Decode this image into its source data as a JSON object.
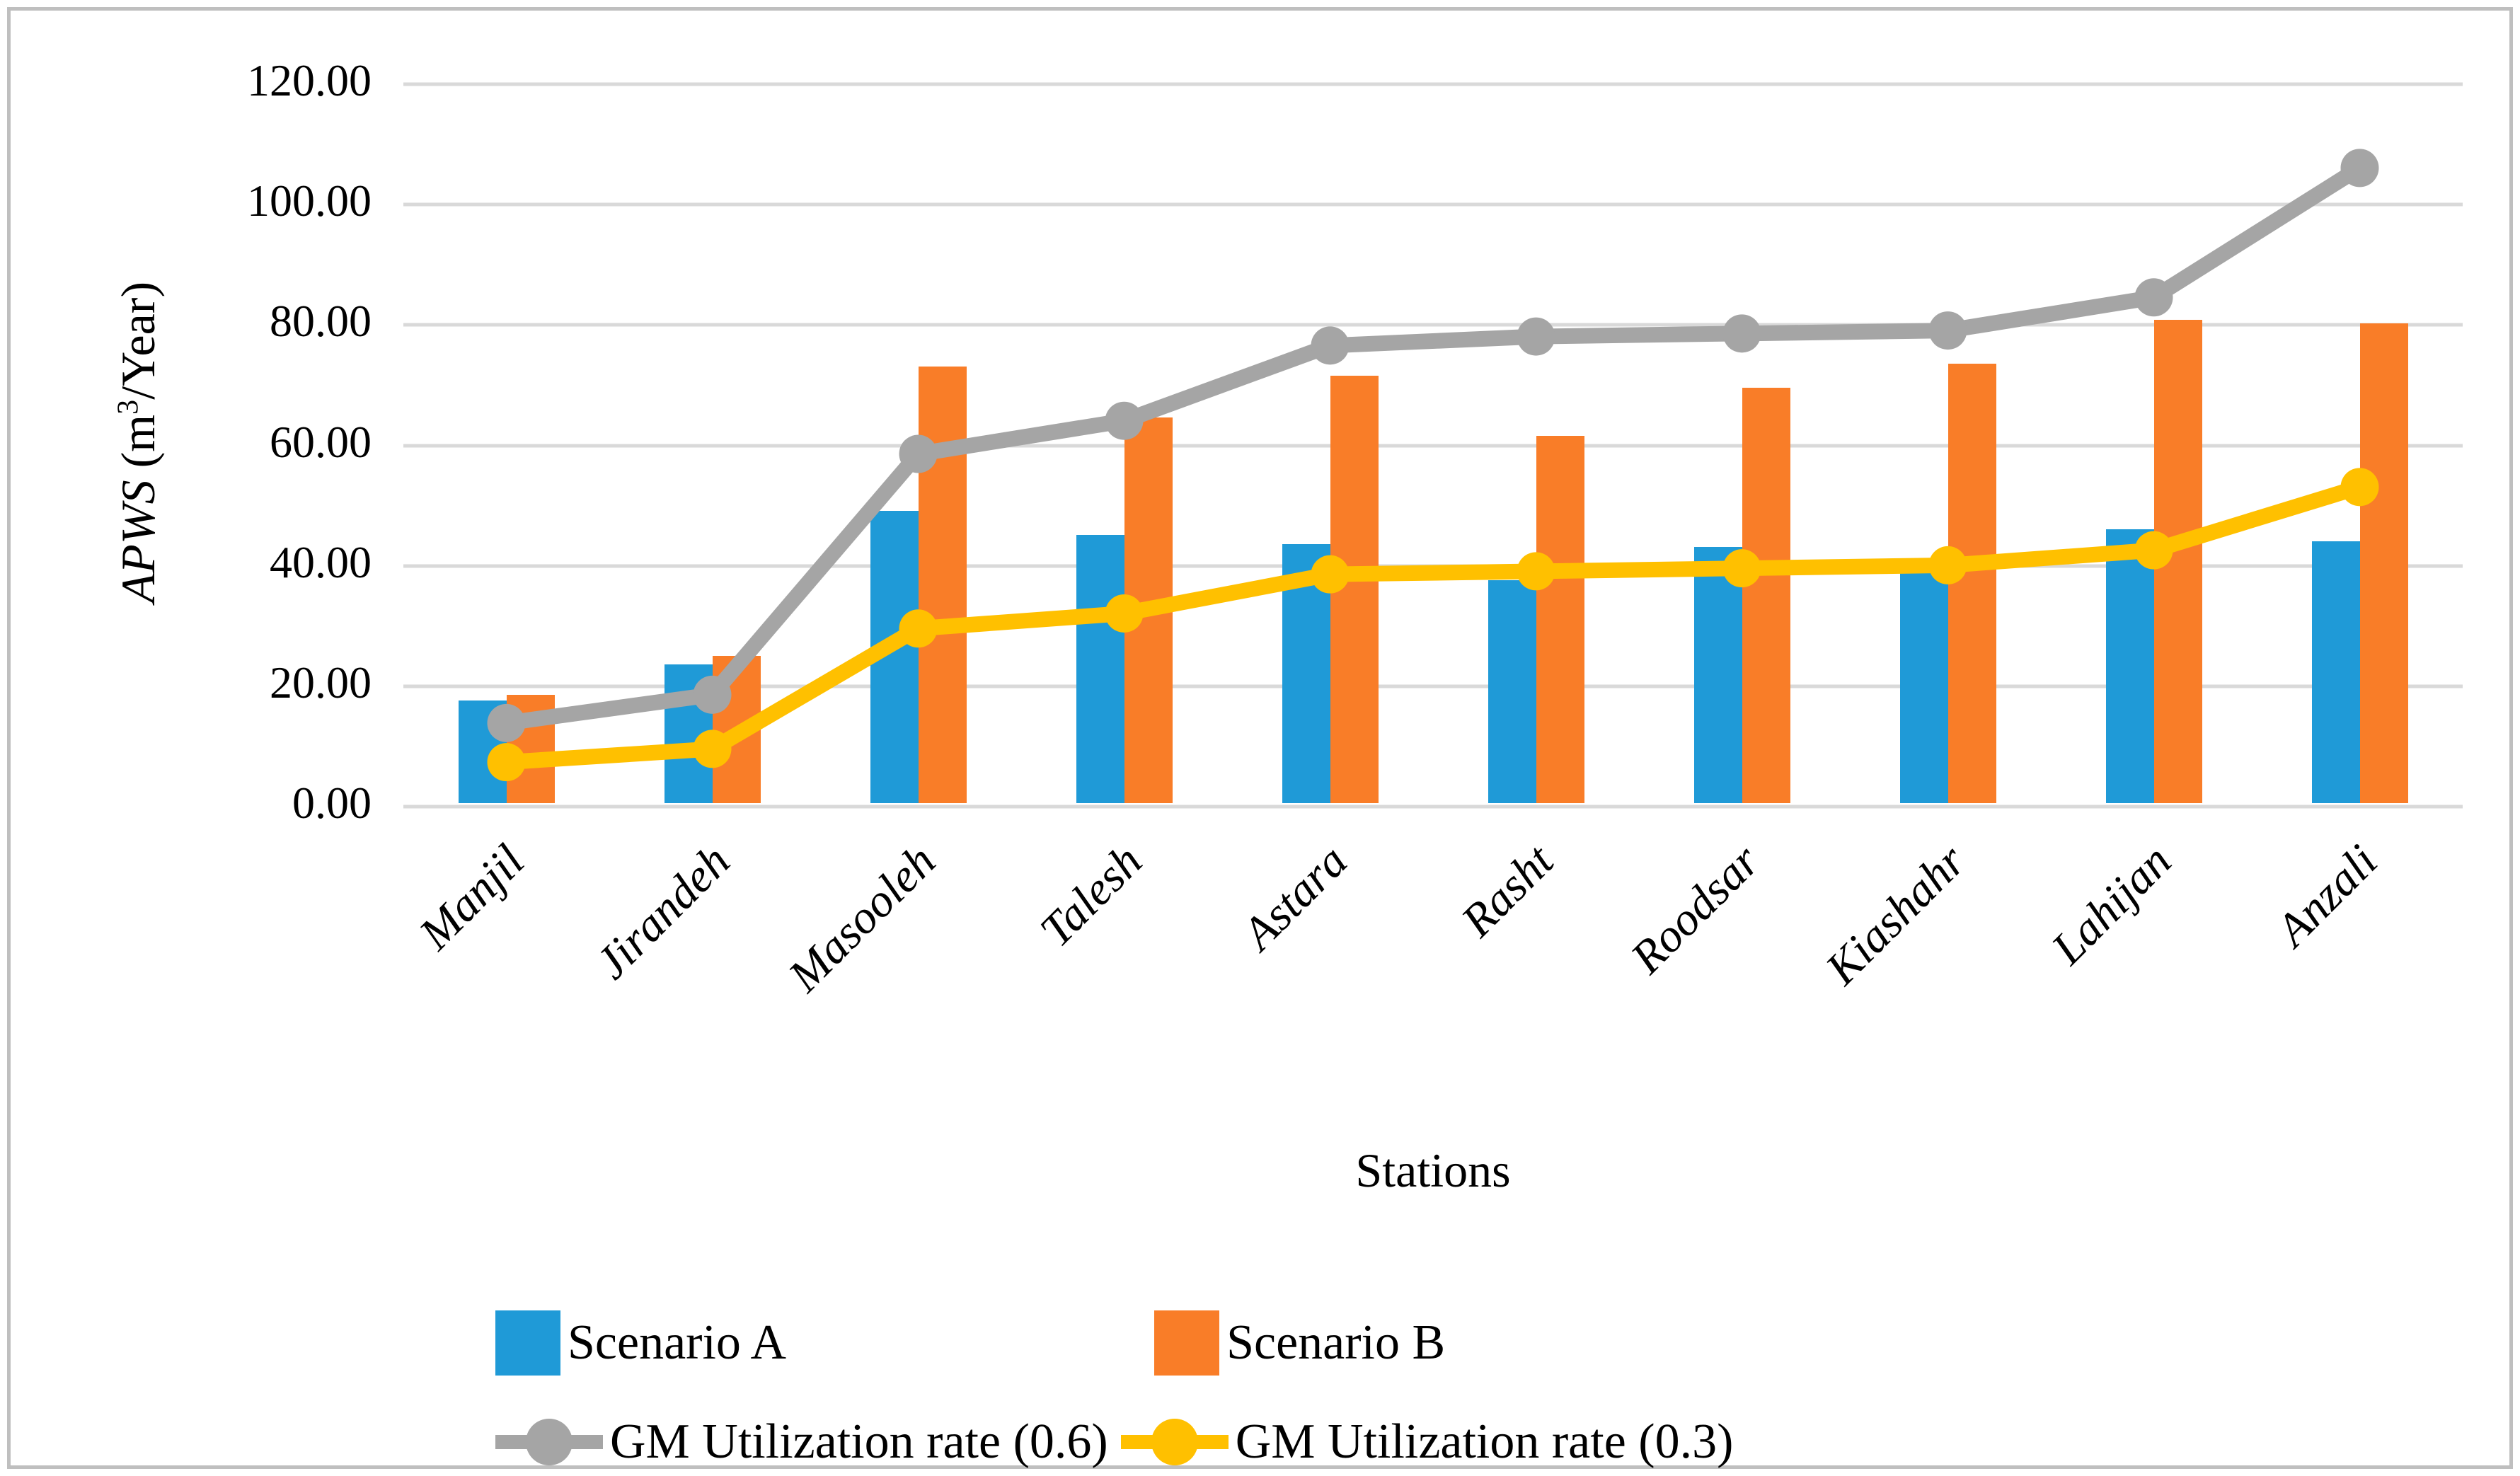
{
  "chart_data": {
    "type": "combo",
    "categories": [
      "Manjil",
      "Jirandeh",
      "Masooleh",
      "Talesh",
      "Astara",
      "Rasht",
      "Roodsar",
      "Kiashahr",
      "Lahijan",
      "Anzali"
    ],
    "series": [
      {
        "name": "Scenario A",
        "type": "bar",
        "color": "#1f9ad7",
        "values": [
          17.0,
          23.0,
          48.5,
          44.5,
          43.0,
          37.0,
          42.5,
          38.5,
          45.5,
          43.5
        ]
      },
      {
        "name": "Scenario B",
        "type": "bar",
        "color": "#f97d28",
        "values": [
          18.0,
          24.5,
          72.5,
          64.0,
          71.0,
          61.0,
          69.0,
          73.0,
          80.3,
          79.7
        ]
      },
      {
        "name": "GM Utilization rate (0.6)",
        "type": "line",
        "color": "#a5a5a5",
        "values": [
          13.3,
          18.0,
          58.0,
          63.5,
          76.0,
          77.5,
          78.0,
          78.5,
          84.0,
          105.5
        ]
      },
      {
        "name": "GM Utilization rate (0.3)",
        "type": "line",
        "color": "#ffc000",
        "values": [
          6.8,
          9.0,
          29.0,
          31.5,
          38.0,
          38.5,
          39.0,
          39.5,
          42.0,
          52.5
        ]
      }
    ],
    "title": "",
    "xlabel": "Stations",
    "ylabel": "APWS (m3/Year)",
    "ylim": [
      0,
      120
    ],
    "grid": true,
    "legend_position": "bottom",
    "yticks": [
      {
        "value": 0,
        "label": "0.00"
      },
      {
        "value": 20,
        "label": "20.00"
      },
      {
        "value": 40,
        "label": "40.00"
      },
      {
        "value": 60,
        "label": "60.00"
      },
      {
        "value": 80,
        "label": "80.00"
      },
      {
        "value": 100,
        "label": "100.00"
      },
      {
        "value": 120,
        "label": "120.00"
      }
    ]
  },
  "y_title": {
    "italic": "APWS",
    "pre": " (m",
    "sup": "3",
    "post": "/Year)"
  },
  "legend": {
    "rows": [
      [
        {
          "type": "bar",
          "color": "#1f9ad7",
          "label": "Scenario A"
        },
        {
          "type": "bar",
          "color": "#f97d28",
          "label": "Scenario B"
        }
      ],
      [
        {
          "type": "line",
          "color": "#a5a5a5",
          "label": "GM Utilization rate (0.6)"
        },
        {
          "type": "line",
          "color": "#ffc000",
          "label": "GM Utilization rate (0.3)"
        }
      ]
    ]
  },
  "colors": {
    "gridline": "#d9d9d9",
    "frame_border": "#bfbfbf",
    "background": "#ffffff",
    "text": "#000000"
  }
}
